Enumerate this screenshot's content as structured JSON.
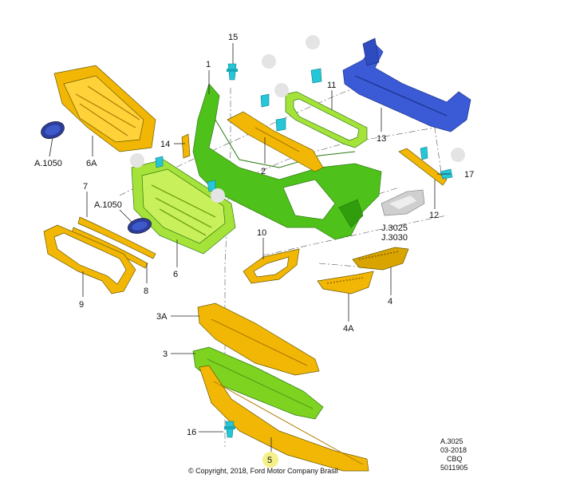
{
  "labels": {
    "p1": "1",
    "p2": "2",
    "p3": "3",
    "p3a": "3A",
    "p4": "4",
    "p4a": "4A",
    "p5": "5",
    "p6": "6",
    "p6a": "6A",
    "p7": "7",
    "p8": "8",
    "p9": "9",
    "p10": "10",
    "p11": "11",
    "p12": "12",
    "p13": "13",
    "p14": "14",
    "p15": "15",
    "p16": "16",
    "p17": "17",
    "a1050_top": "A.1050",
    "a1050_mid": "A.1050",
    "j3025": "J.3025",
    "j3030": "J.3030"
  },
  "footer": {
    "copyright": "© Copyright, 2018, Ford Motor Company Brasil",
    "ref_code": "A.3025",
    "ref_date": "03-2018",
    "ref_model": "CBQ",
    "ref_number": "5011905"
  },
  "colors": {
    "yellow": "#f2b705",
    "yellow_dark": "#c98a00",
    "green": "#4ec21a",
    "green_light": "#a6e33a",
    "blue": "#3b5bd6",
    "cyan": "#25c6d8",
    "grey": "#cfcfcf",
    "highlight": "#f4f08a"
  }
}
